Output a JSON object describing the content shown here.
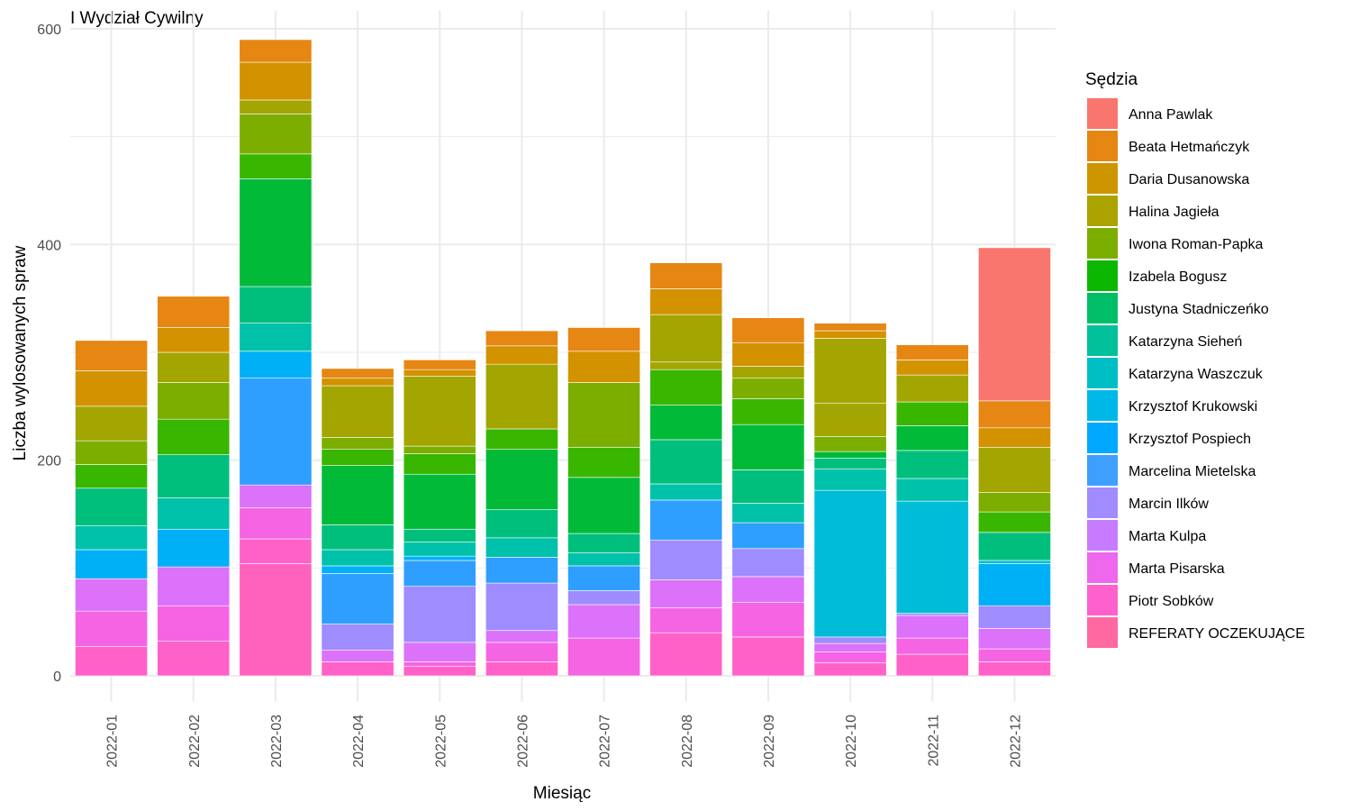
{
  "chart_data": {
    "type": "bar",
    "stacked": true,
    "title": "I Wydział Cywilny",
    "xlabel": "Miesiąc",
    "ylabel": "Liczba wylosowanych spraw",
    "ylim": [
      0,
      600
    ],
    "yticks": [
      0,
      200,
      400,
      600
    ],
    "grid": true,
    "legend_position": "right",
    "legend_title": "Sędzia",
    "categories": [
      "2022-01",
      "2022-02",
      "2022-03",
      "2022-04",
      "2022-05",
      "2022-06",
      "2022-07",
      "2022-08",
      "2022-09",
      "2022-10",
      "2022-11",
      "2022-12"
    ],
    "series": [
      {
        "name": "REFERATY OCZEKUJĄCE",
        "color": "#FF62BC",
        "values": [
          0,
          0,
          104,
          0,
          0,
          0,
          0,
          0,
          0,
          0,
          0,
          0
        ]
      },
      {
        "name": "Piotr Sobków",
        "color": "#FF61C9",
        "values": [
          27,
          32,
          23,
          13,
          9,
          13,
          0,
          40,
          36,
          12,
          20,
          13
        ]
      },
      {
        "name": "Marta Pisarska",
        "color": "#F564E3",
        "values": [
          33,
          33,
          29,
          0,
          4,
          18,
          35,
          23,
          32,
          10,
          15,
          12
        ]
      },
      {
        "name": "Marta Kulpa",
        "color": "#DC71FA",
        "values": [
          30,
          36,
          21,
          11,
          18,
          11,
          31,
          26,
          24,
          8,
          21,
          19
        ]
      },
      {
        "name": "Marcin Ilków",
        "color": "#9F8CFF",
        "values": [
          0,
          0,
          0,
          24,
          52,
          44,
          13,
          37,
          26,
          6,
          2,
          21
        ]
      },
      {
        "name": "Marcelina Mietelska",
        "color": "#2E9FFE",
        "values": [
          0,
          0,
          99,
          47,
          24,
          24,
          23,
          37,
          24,
          0,
          0,
          0
        ]
      },
      {
        "name": "Krzysztof Pospiech",
        "color": "#00B0F6",
        "values": [
          27,
          35,
          25,
          7,
          4,
          0,
          0,
          0,
          0,
          0,
          0,
          39
        ]
      },
      {
        "name": "Krzysztof Krukowski",
        "color": "#00BCD8",
        "values": [
          0,
          0,
          0,
          0,
          0,
          0,
          0,
          0,
          0,
          136,
          104,
          3
        ]
      },
      {
        "name": "Katarzyna Waszczuk",
        "color": "#00C1AA",
        "values": [
          22,
          29,
          26,
          15,
          13,
          18,
          12,
          15,
          18,
          20,
          21,
          0
        ]
      },
      {
        "name": "Katarzyna Sieheń",
        "color": "#00BF7D",
        "values": [
          35,
          40,
          34,
          23,
          12,
          26,
          18,
          41,
          31,
          10,
          26,
          26
        ]
      },
      {
        "name": "Justyna Stadniczeńko",
        "color": "#00BA38",
        "values": [
          0,
          0,
          100,
          55,
          51,
          56,
          52,
          32,
          42,
          6,
          23,
          0
        ]
      },
      {
        "name": "Izabela Bogusz",
        "color": "#39B600",
        "values": [
          22,
          33,
          23,
          15,
          19,
          19,
          28,
          33,
          24,
          0,
          22,
          19
        ]
      },
      {
        "name": "Iwona Roman-Papka",
        "color": "#7CAE00",
        "values": [
          22,
          34,
          37,
          11,
          7,
          0,
          60,
          0,
          19,
          14,
          0,
          18
        ]
      },
      {
        "name": "Halina Jagieła",
        "color": "#A3A500",
        "values": [
          32,
          28,
          13,
          48,
          65,
          60,
          0,
          7,
          11,
          31,
          25,
          0
        ]
      },
      {
        "name": "Halina Jagieła (cont.)",
        "color": "#A3A500",
        "values": [
          0,
          0,
          0,
          0,
          0,
          0,
          0,
          44,
          0,
          60,
          0,
          42
        ]
      },
      {
        "name": "Daria Dusanowska",
        "color": "#C09B00",
        "values": [
          0,
          0,
          0,
          0,
          0,
          0,
          0,
          0,
          0,
          0,
          0,
          0
        ]
      },
      {
        "name": "Daria Dusanowska",
        "color": "#D39200",
        "values": [
          33,
          23,
          35,
          7,
          6,
          17,
          29,
          24,
          22,
          7,
          14,
          18
        ]
      },
      {
        "name": "Beata Hetmańczyk",
        "color": "#E68613",
        "values": [
          28,
          29,
          21,
          9,
          9,
          14,
          22,
          24,
          23,
          7,
          14,
          25
        ]
      },
      {
        "name": "Anna Pawlak",
        "color": "#F8766D",
        "values": [
          0,
          0,
          0,
          0,
          0,
          0,
          0,
          0,
          0,
          0,
          0,
          142
        ]
      }
    ],
    "legend_entries": [
      {
        "name": "Anna Pawlak",
        "color": "#F8766D"
      },
      {
        "name": "Beata Hetmańczyk",
        "color": "#E68613"
      },
      {
        "name": "Daria Dusanowska",
        "color": "#CD9600"
      },
      {
        "name": "Halina Jagieła",
        "color": "#ABA300"
      },
      {
        "name": "Iwona Roman-Papka",
        "color": "#7CAE00"
      },
      {
        "name": "Izabela Bogusz",
        "color": "#0CB702"
      },
      {
        "name": "Justyna Stadniczeńko",
        "color": "#00BE67"
      },
      {
        "name": "Katarzyna Sieheń",
        "color": "#00C19A"
      },
      {
        "name": "Katarzyna Waszczuk",
        "color": "#00BFC4"
      },
      {
        "name": "Krzysztof Krukowski",
        "color": "#00B8E7"
      },
      {
        "name": "Krzysztof Pospiech",
        "color": "#00A9FF"
      },
      {
        "name": "Marcelina Mietelska",
        "color": "#3F9FFF"
      },
      {
        "name": "Marcin Ilków",
        "color": "#A08CFF"
      },
      {
        "name": "Marta Kulpa",
        "color": "#C77CFF"
      },
      {
        "name": "Marta Pisarska",
        "color": "#ED68ED"
      },
      {
        "name": "Piotr Sobków",
        "color": "#FF61CC"
      },
      {
        "name": "REFERATY OCZEKUJĄCE",
        "color": "#FF68A1"
      }
    ]
  }
}
